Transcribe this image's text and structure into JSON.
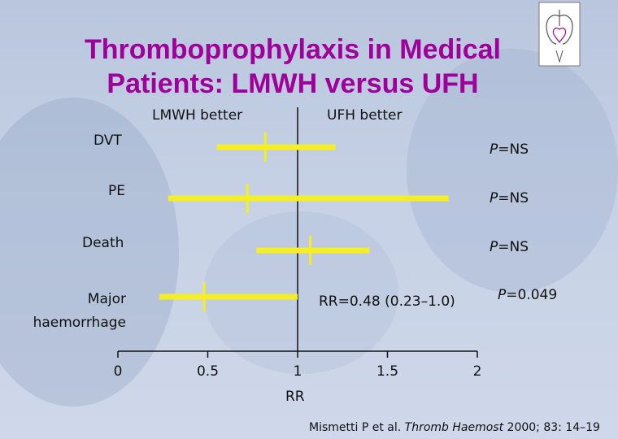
{
  "title": {
    "line1": "Thromboprophylaxis in Medical",
    "line2": "Patients: LMWH versus UFH"
  },
  "colors": {
    "title": "#a0009a",
    "bar": "#f4ee22",
    "axis": "#111111"
  },
  "icons": {
    "logo": "heart-lungs-icon"
  },
  "chart_data": {
    "type": "forest",
    "header_left": "LMWH better",
    "header_right": "UFH better",
    "xlabel": "RR",
    "x_ticks": [
      0,
      0.5,
      1,
      1.5,
      2
    ],
    "x_tick_labels": [
      "0",
      "0.5",
      "1",
      "1.5",
      "2"
    ],
    "xlim": [
      0,
      2
    ],
    "reference_line": 1,
    "rows": [
      {
        "label": "DVT",
        "rr": 0.82,
        "ci_low": 0.55,
        "ci_high": 1.21,
        "p_prefix": "P",
        "p_value": "=NS"
      },
      {
        "label": "PE",
        "rr": 0.72,
        "ci_low": 0.28,
        "ci_high": 1.84,
        "p_prefix": "P",
        "p_value": "=NS"
      },
      {
        "label": "Death",
        "rr": 1.07,
        "ci_low": 0.77,
        "ci_high": 1.4,
        "p_prefix": "P",
        "p_value": "=NS"
      },
      {
        "label_line1": "Major",
        "label_line2": "haemorrhage",
        "rr": 0.48,
        "ci_low": 0.23,
        "ci_high": 1.0,
        "p_prefix": "P",
        "p_value": "=0.049",
        "annotation": "RR=0.48 (0.23–1.0)"
      }
    ]
  },
  "citation": {
    "authors": "Mismetti P et al.",
    "journal": "Thromb Haemost",
    "details": "2000; 83: 14–19"
  }
}
